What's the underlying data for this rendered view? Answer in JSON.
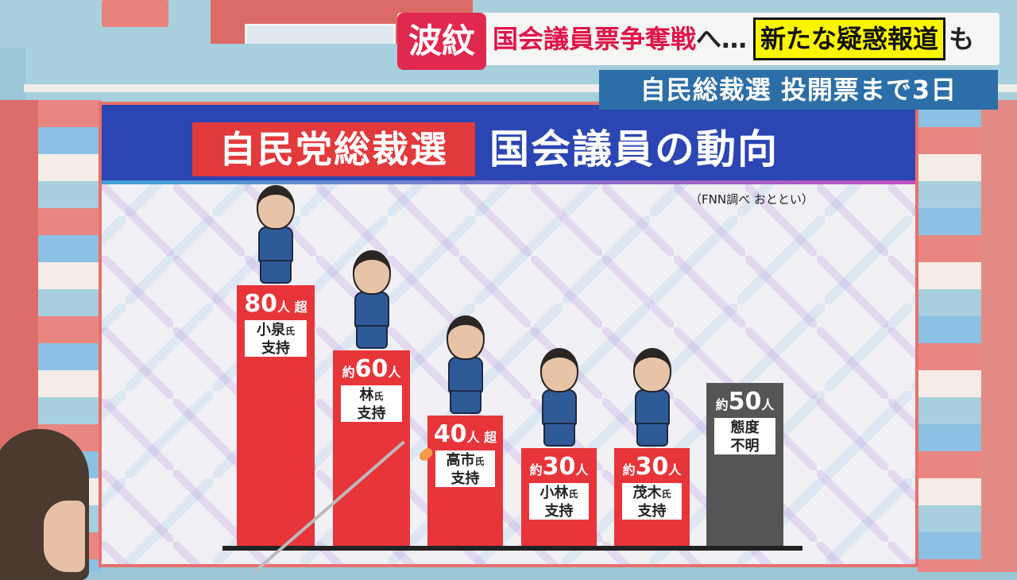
{
  "ticker": {
    "tag": "波紋",
    "headline_red": "国会議員票争奪戦",
    "headline_mid": "へ…",
    "headline_highlight": "新たな疑惑報道",
    "headline_end": "も",
    "subline": "自民総裁選 投開票まで3日"
  },
  "colors": {
    "bar_red": "#e8353a",
    "bar_gray": "#555555",
    "header_blue": "#2b45b3",
    "tag_red": "#e12950",
    "highlight_yellow": "#fbf500"
  },
  "chart_data": {
    "type": "bar",
    "title_red": "自民党総裁選",
    "title_white": "国会議員の動向",
    "source": "（FNN調べ おととい）",
    "unit": "人",
    "categories": [
      "小泉氏支持",
      "林氏支持",
      "高市氏支持",
      "小林氏支持",
      "茂木氏支持",
      "態度不明"
    ],
    "bars": [
      {
        "name": "小泉",
        "suffix_name": "氏",
        "line2": "支持",
        "prefix": "",
        "value": 80,
        "unit": "人",
        "qualifier": "超",
        "color": "red",
        "figure": true
      },
      {
        "name": "林",
        "suffix_name": "氏",
        "line2": "支持",
        "prefix": "約",
        "value": 60,
        "unit": "人",
        "qualifier": "",
        "color": "red",
        "figure": true
      },
      {
        "name": "高市",
        "suffix_name": "氏",
        "line2": "支持",
        "prefix": "",
        "value": 40,
        "unit": "人",
        "qualifier": "超",
        "color": "red",
        "figure": true
      },
      {
        "name": "小林",
        "suffix_name": "氏",
        "line2": "支持",
        "prefix": "約",
        "value": 30,
        "unit": "人",
        "qualifier": "",
        "color": "red",
        "figure": true
      },
      {
        "name": "茂木",
        "suffix_name": "氏",
        "line2": "支持",
        "prefix": "約",
        "value": 30,
        "unit": "人",
        "qualifier": "",
        "color": "red",
        "figure": true
      },
      {
        "name": "態度",
        "suffix_name": "",
        "line2": "不明",
        "prefix": "約",
        "value": 50,
        "unit": "人",
        "qualifier": "",
        "color": "gray",
        "figure": false
      }
    ],
    "ylim": [
      0,
      80
    ],
    "grid": false
  }
}
